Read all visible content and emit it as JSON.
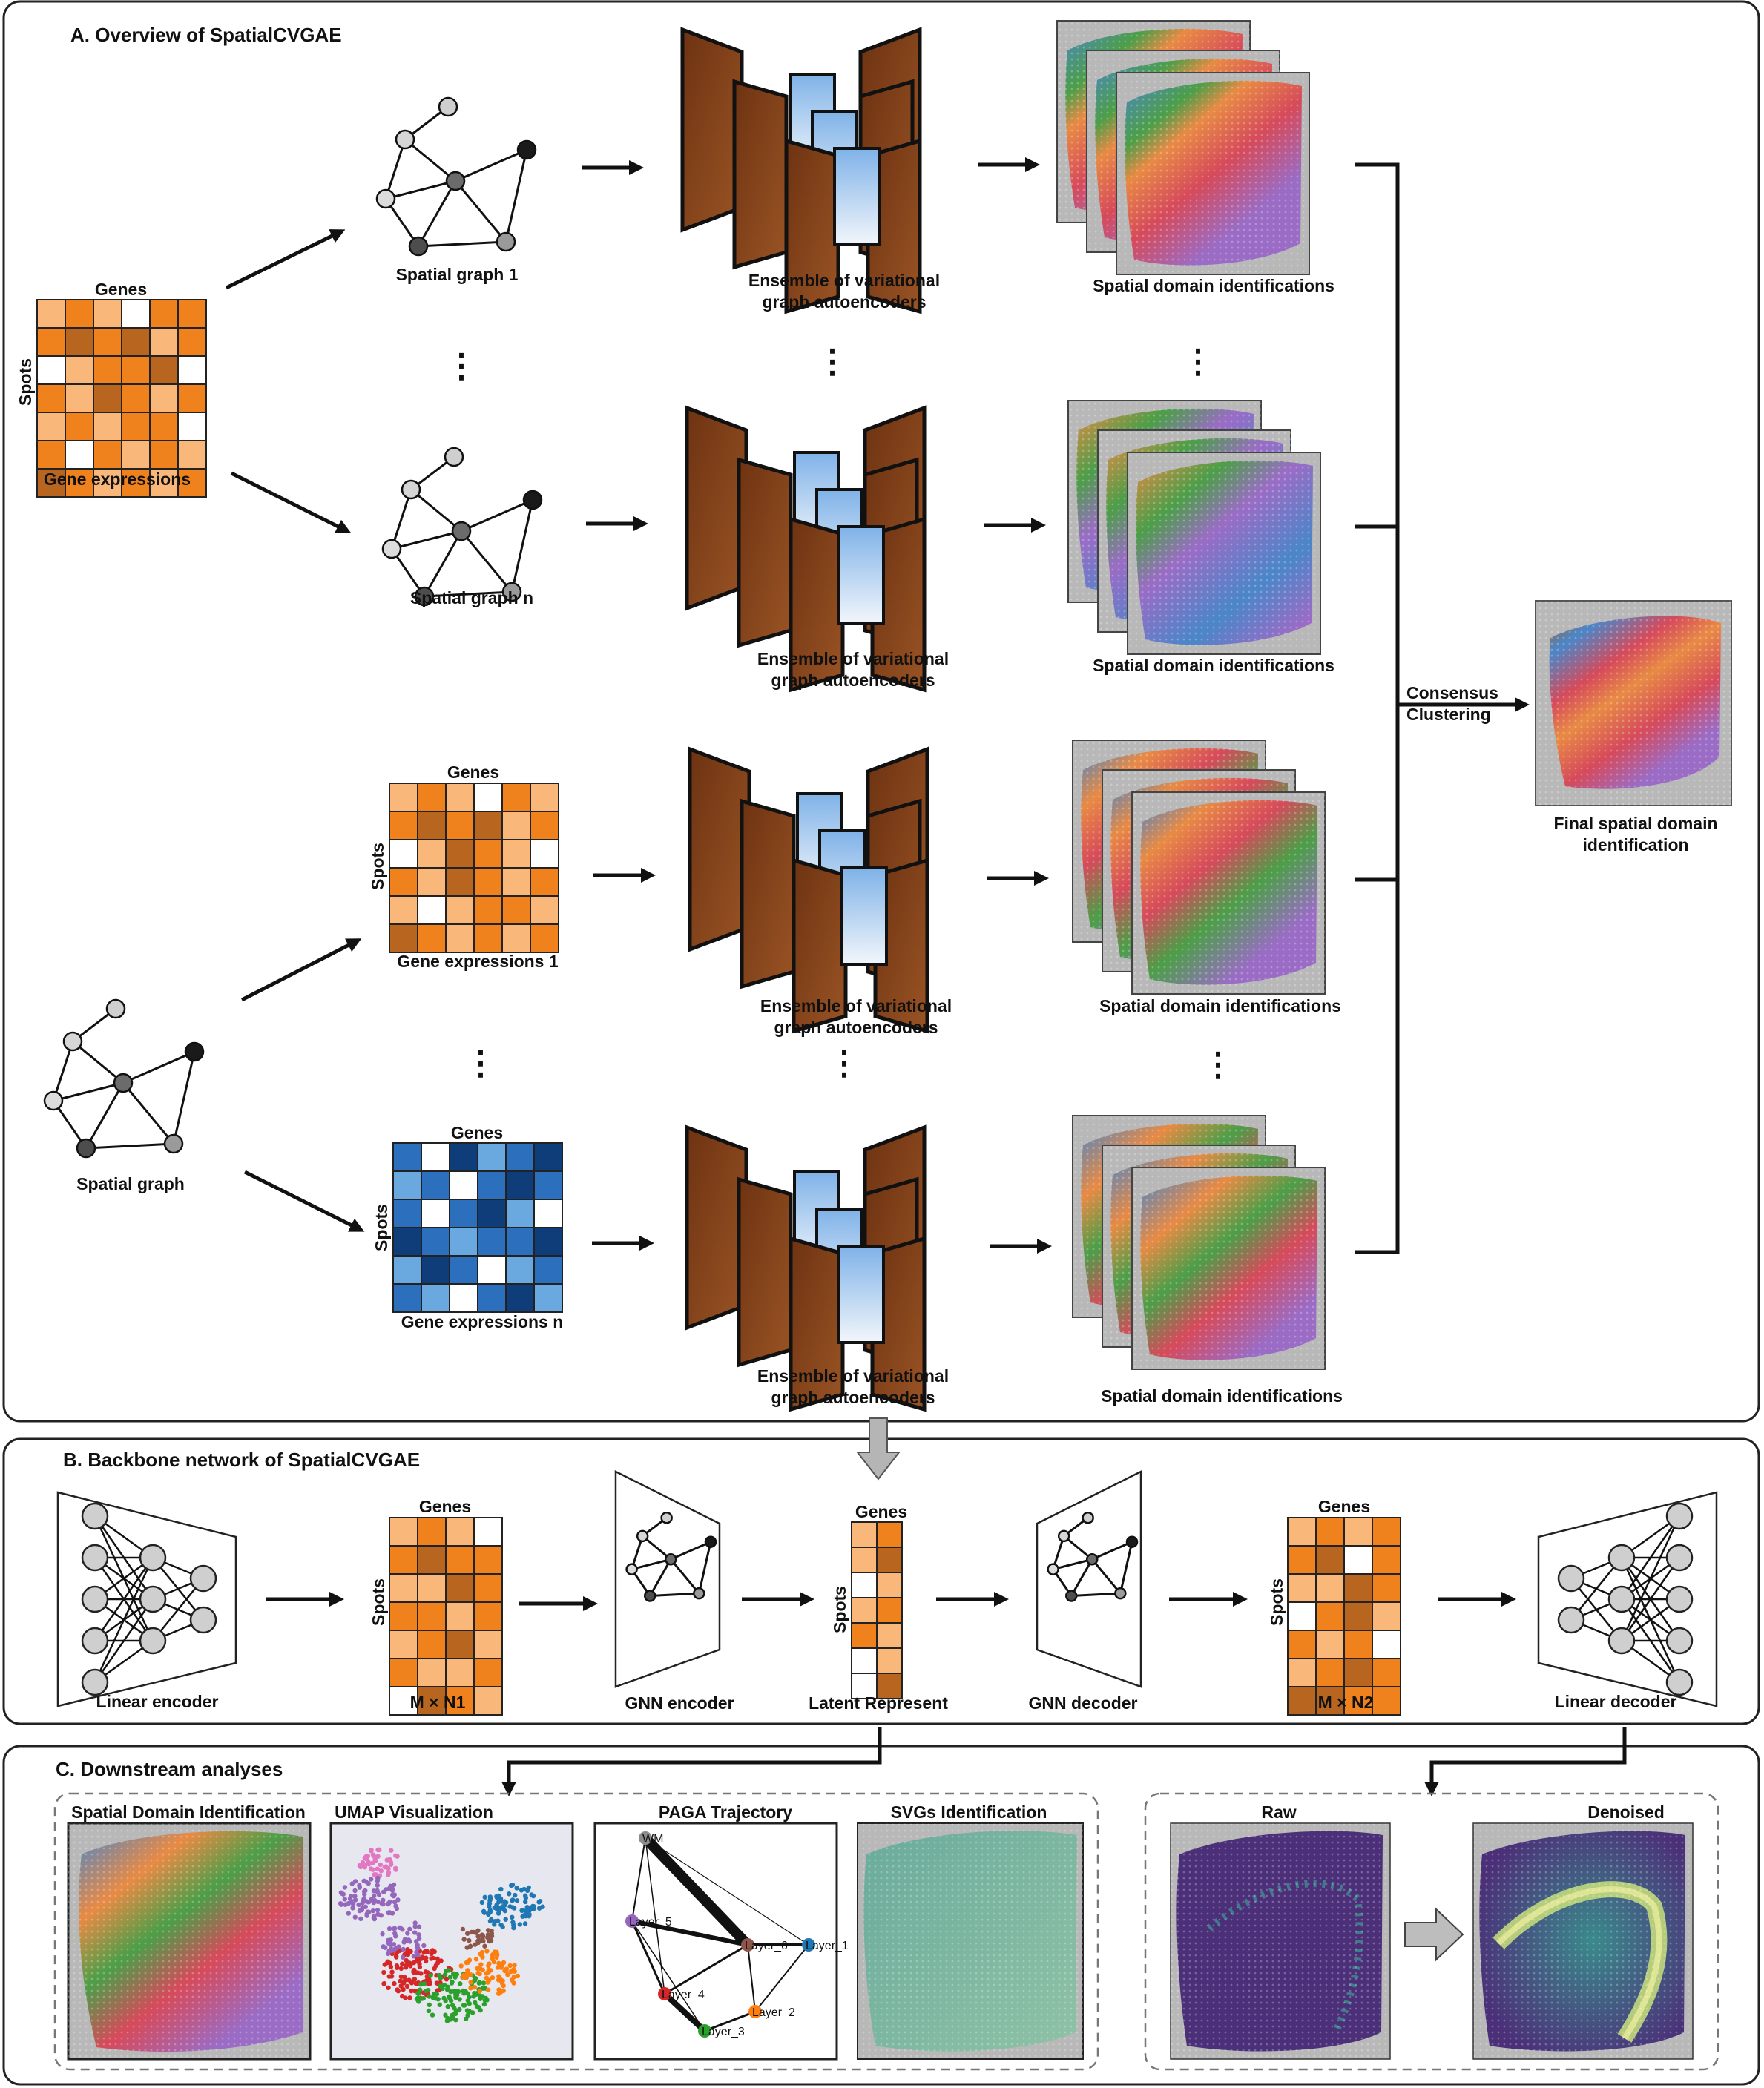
{
  "panel_a": {
    "title": "A. Overview of SpatialCVGAE",
    "matrix_genes": "Genes",
    "matrix_spots": "Spots",
    "gene_expressions": "Gene expressions",
    "spatial_graph_1": "Spatial graph 1",
    "spatial_graph_n": "Spatial graph n",
    "spatial_graph": "Spatial graph",
    "gene_expressions_1": "Gene expressions 1",
    "gene_expressions_n": "Gene expressions n",
    "ensemble_l1": "Ensemble of variational",
    "ensemble_l2": "graph autoencoders",
    "domain_ids": "Spatial domain identifications",
    "consensus_l1": "Consensus",
    "consensus_l2": "Clustering",
    "final_l1": "Final spatial domain",
    "final_l2": "identification",
    "ellipsis": "⋮"
  },
  "panel_b": {
    "title": "B. Backbone network of SpatialCVGAE",
    "linear_encoder": "Linear encoder",
    "m_n1": "M × N1",
    "gnn_encoder": "GNN encoder",
    "latent": "Latent Represent",
    "gnn_decoder": "GNN decoder",
    "m_n2": "M × N2",
    "linear_decoder": "Linear decoder",
    "genes": "Genes",
    "spots": "Spots"
  },
  "panel_c": {
    "title": "C. Downstream analyses",
    "sdi": "Spatial Domain Identification",
    "umap": "UMAP  Visualization",
    "paga": "PAGA Trajectory",
    "svgs": "SVGs Identification",
    "raw": "Raw",
    "denoised": "Denoised",
    "paga_nodes": [
      "WM",
      "Layer_5",
      "Layer_6",
      "Layer_1",
      "Layer_4",
      "Layer_2",
      "Layer_3"
    ]
  },
  "colors": {
    "orange_dark": "#b8651f",
    "orange_mid": "#f0821e",
    "orange_light": "#f9b87a",
    "orange_pale": "#fcd9b4",
    "blue_dark": "#0e3d7a",
    "blue_mid": "#2c6fbd",
    "blue_light": "#6aa8e0",
    "brown": "#7a3a18",
    "tissue_purple": "#9a6cc6",
    "tissue_red": "#d64a5a",
    "tissue_orange": "#e88a44",
    "tissue_green": "#4c9e48",
    "tissue_blue": "#4a86c8"
  }
}
